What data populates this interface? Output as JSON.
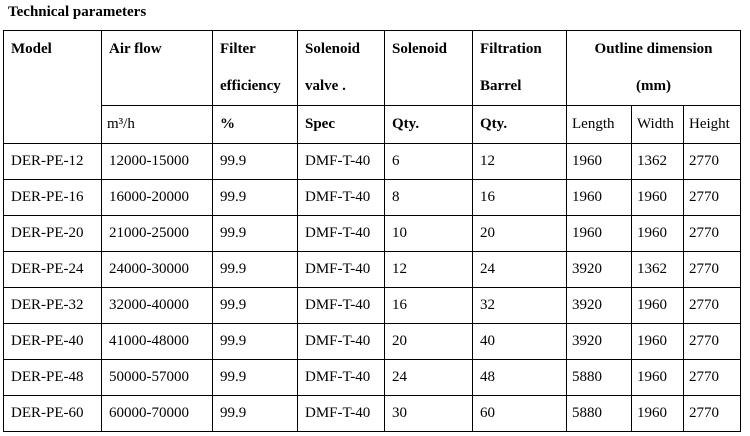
{
  "title": "Technical parameters",
  "table": {
    "header": [
      {
        "lines": [
          "Model"
        ]
      },
      {
        "lines": [
          "Air flow"
        ]
      },
      {
        "lines": [
          "Filter",
          "efficiency"
        ]
      },
      {
        "lines": [
          "Solenoid",
          "valve ."
        ]
      },
      {
        "lines": [
          "Solenoid"
        ]
      },
      {
        "lines": [
          "Filtration",
          "Barrel"
        ]
      },
      {
        "lines": [
          "Outline dimension",
          "(mm)"
        ]
      }
    ],
    "units": [
      "m³/h",
      "%",
      "Spec",
      "Qty.",
      "Qty.",
      "Length",
      "Width",
      "Height"
    ],
    "rows": [
      [
        "DER-PE-12",
        "12000-15000",
        "99.9",
        "DMF-T-40",
        "6",
        "12",
        "1960",
        "1362",
        "2770"
      ],
      [
        "DER-PE-16",
        "16000-20000",
        "99.9",
        "DMF-T-40",
        "8",
        "16",
        "1960",
        "1960",
        "2770"
      ],
      [
        "DER-PE-20",
        "21000-25000",
        "99.9",
        "DMF-T-40",
        "10",
        "20",
        "1960",
        "1960",
        "2770"
      ],
      [
        "DER-PE-24",
        "24000-30000",
        "99.9",
        "DMF-T-40",
        "12",
        "24",
        "3920",
        "1362",
        "2770"
      ],
      [
        "DER-PE-32",
        "32000-40000",
        "99.9",
        "DMF-T-40",
        "16",
        "32",
        "3920",
        "1960",
        "2770"
      ],
      [
        "DER-PE-40",
        "41000-48000",
        "99.9",
        "DMF-T-40",
        "20",
        "40",
        "3920",
        "1960",
        "2770"
      ],
      [
        "DER-PE-48",
        "50000-57000",
        "99.9",
        "DMF-T-40",
        "24",
        "48",
        "5880",
        "1960",
        "2770"
      ],
      [
        "DER-PE-60",
        "60000-70000",
        "99.9",
        "DMF-T-40",
        "30",
        "60",
        "5880",
        "1960",
        "2770"
      ]
    ]
  }
}
